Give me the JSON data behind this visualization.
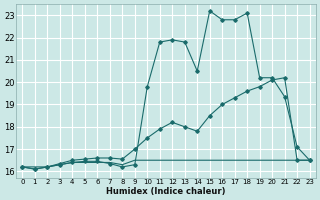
{
  "xlabel": "Humidex (Indice chaleur)",
  "bg_color": "#cce8e6",
  "grid_color": "#ffffff",
  "line_color": "#1a6b6b",
  "xlim": [
    -0.5,
    23.5
  ],
  "ylim": [
    15.7,
    23.5
  ],
  "xticks": [
    0,
    1,
    2,
    3,
    4,
    5,
    6,
    7,
    8,
    9,
    10,
    11,
    12,
    13,
    14,
    15,
    16,
    17,
    18,
    19,
    20,
    21,
    22,
    23
  ],
  "yticks": [
    16,
    17,
    18,
    19,
    20,
    21,
    22,
    23
  ],
  "curve1_x": [
    0,
    1,
    2,
    3,
    4,
    5,
    6,
    7,
    8,
    9,
    10,
    11,
    12,
    13,
    14,
    15,
    16,
    17,
    18,
    19,
    20,
    21,
    22,
    23
  ],
  "curve1_y": [
    16.2,
    16.1,
    16.2,
    16.3,
    16.4,
    16.45,
    16.45,
    16.35,
    16.2,
    16.3,
    19.8,
    21.8,
    21.9,
    21.8,
    20.5,
    23.2,
    22.8,
    22.8,
    23.1,
    20.2,
    20.2,
    19.35,
    17.1,
    16.5
  ],
  "curve2_x": [
    0,
    1,
    2,
    3,
    4,
    5,
    6,
    7,
    8,
    9,
    10,
    11,
    12,
    13,
    14,
    15,
    16,
    17,
    18,
    19,
    20,
    21,
    22,
    23
  ],
  "curve2_y": [
    16.2,
    16.1,
    16.2,
    16.35,
    16.5,
    16.55,
    16.6,
    16.6,
    16.55,
    17.0,
    17.5,
    17.9,
    18.2,
    18.0,
    17.8,
    18.5,
    19.0,
    19.3,
    19.6,
    19.8,
    20.1,
    20.2,
    16.5,
    16.5
  ],
  "curve3_x": [
    0,
    1,
    2,
    3,
    4,
    5,
    6,
    7,
    8,
    9,
    10,
    11,
    12,
    13,
    14,
    15,
    16,
    17,
    18,
    19,
    20,
    21,
    22,
    23
  ],
  "curve3_y": [
    16.2,
    16.2,
    16.2,
    16.3,
    16.4,
    16.4,
    16.4,
    16.4,
    16.3,
    16.5,
    16.5,
    16.5,
    16.5,
    16.5,
    16.5,
    16.5,
    16.5,
    16.5,
    16.5,
    16.5,
    16.5,
    16.5,
    16.5,
    16.5
  ]
}
